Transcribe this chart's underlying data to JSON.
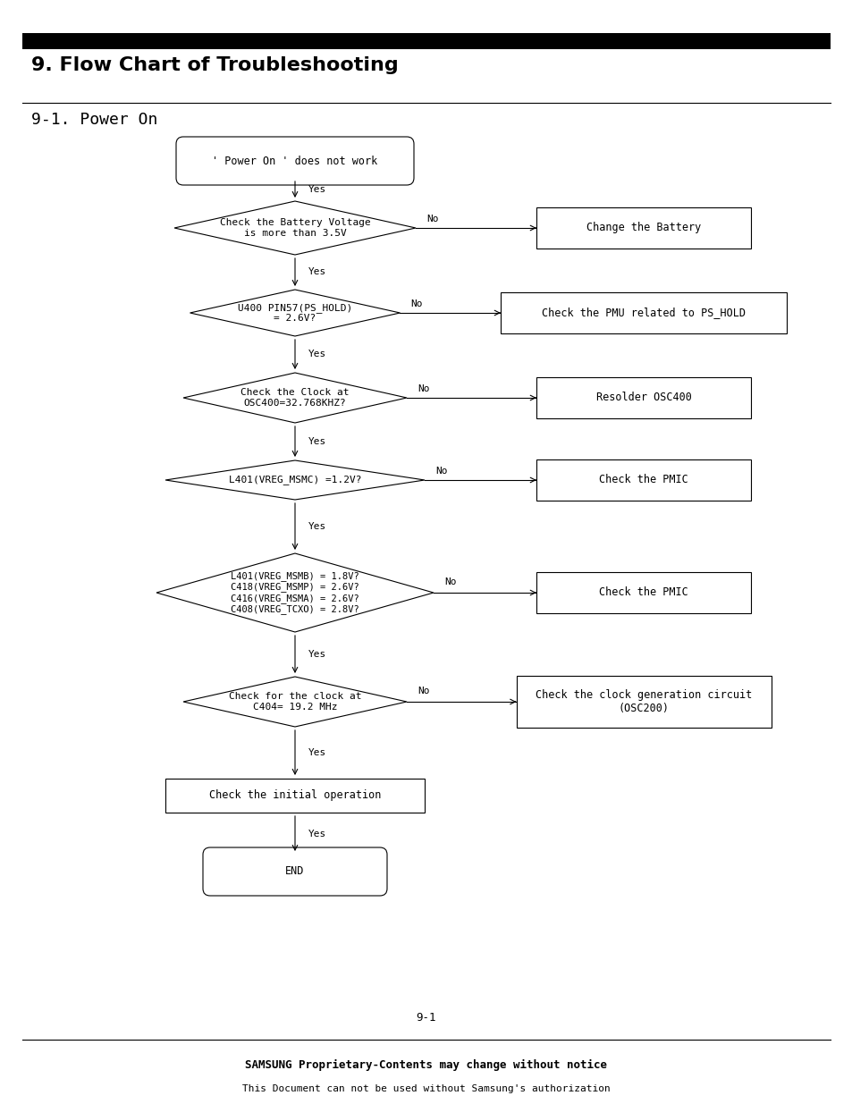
{
  "title1": "9. Flow Chart of Troubleshooting",
  "title2": "9-1. Power On",
  "page_num": "9-1",
  "footer1": "SAMSUNG Proprietary-Contents may change without notice",
  "footer2": "This Document can not be used without Samsung's authorization",
  "bg_color": "#ffffff",
  "start_text": "' Power On ' does not work",
  "d1_text": "Check the Battery Voltage\nis more than 3.5V",
  "d2_text": "U400 PIN57(PS_HOLD)\n= 2.6V?",
  "d3_text": "Check the Clock at\nOSC400=32.768KHZ?",
  "d4_text": "L401(VREG_MSMC) =1.2V?",
  "d5_text": "L401(VREG_MSMB) = 1.8V?\nC418(VREG_MSMP) = 2.6V?\nC416(VREG_MSMA) = 2.6V?\nC408(VREG_TCXO) = 2.8V?",
  "d6_text": "Check for the clock at\nC404= 19.2 MHz",
  "act_text": "Check the initial operation",
  "end_text": "END",
  "r1_text": "Change the Battery",
  "r2_text": "Check the PMU related to PS_HOLD",
  "r3_text": "Resolder OSC400",
  "r4_text": "Check the PMIC",
  "r5_text": "Check the PMIC",
  "r6_text": "Check the clock generation circuit\n(OSC200)"
}
